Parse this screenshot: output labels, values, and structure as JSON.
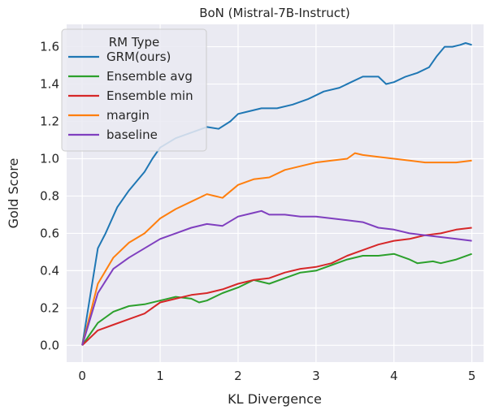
{
  "chart_data": {
    "type": "line",
    "title": "BoN (Mistral-7B-Instruct)",
    "xlabel": "KL Divergence",
    "ylabel": "Gold Score",
    "xlim": [
      -0.2,
      5.15
    ],
    "ylim": [
      -0.09,
      1.72
    ],
    "xticks": [
      0,
      1,
      2,
      3,
      4,
      5
    ],
    "yticks": [
      0.0,
      0.2,
      0.4,
      0.6,
      0.8,
      1.0,
      1.2,
      1.4,
      1.6
    ],
    "xtick_labels": [
      "0",
      "1",
      "2",
      "3",
      "4",
      "5"
    ],
    "ytick_labels": [
      "0.0",
      "0.2",
      "0.4",
      "0.6",
      "0.8",
      "1.0",
      "1.2",
      "1.4",
      "1.6"
    ],
    "grid": true,
    "legend_title": "RM Type",
    "legend_position": "top-left",
    "series": [
      {
        "name": "GRM(ours)",
        "color": "#1f77b4",
        "x": [
          0,
          0.1,
          0.2,
          0.3,
          0.45,
          0.6,
          0.8,
          0.9,
          1.0,
          1.2,
          1.4,
          1.6,
          1.75,
          1.9,
          2.0,
          2.1,
          2.3,
          2.5,
          2.7,
          2.9,
          3.1,
          3.3,
          3.45,
          3.6,
          3.8,
          3.9,
          4.0,
          4.15,
          4.3,
          4.45,
          4.55,
          4.65,
          4.75,
          4.85,
          4.92,
          5.0
        ],
        "y": [
          0,
          0.26,
          0.52,
          0.6,
          0.74,
          0.83,
          0.93,
          1.0,
          1.06,
          1.11,
          1.14,
          1.17,
          1.16,
          1.2,
          1.24,
          1.25,
          1.27,
          1.27,
          1.29,
          1.32,
          1.36,
          1.38,
          1.41,
          1.44,
          1.44,
          1.4,
          1.41,
          1.44,
          1.46,
          1.49,
          1.55,
          1.6,
          1.6,
          1.61,
          1.62,
          1.61
        ]
      },
      {
        "name": "Ensemble avg",
        "color": "#2ca02c",
        "x": [
          0,
          0.2,
          0.4,
          0.6,
          0.8,
          1.0,
          1.2,
          1.4,
          1.5,
          1.6,
          1.8,
          2.0,
          2.2,
          2.4,
          2.6,
          2.8,
          3.0,
          3.2,
          3.4,
          3.6,
          3.8,
          4.0,
          4.2,
          4.3,
          4.5,
          4.6,
          4.8,
          5.0
        ],
        "y": [
          0,
          0.12,
          0.18,
          0.21,
          0.22,
          0.24,
          0.26,
          0.25,
          0.23,
          0.24,
          0.28,
          0.31,
          0.35,
          0.33,
          0.36,
          0.39,
          0.4,
          0.43,
          0.46,
          0.48,
          0.48,
          0.49,
          0.46,
          0.44,
          0.45,
          0.44,
          0.46,
          0.49
        ]
      },
      {
        "name": "Ensemble min",
        "color": "#d62728",
        "x": [
          0,
          0.2,
          0.4,
          0.6,
          0.8,
          1.0,
          1.2,
          1.4,
          1.6,
          1.8,
          2.0,
          2.2,
          2.4,
          2.6,
          2.8,
          3.0,
          3.2,
          3.4,
          3.6,
          3.8,
          4.0,
          4.2,
          4.4,
          4.6,
          4.8,
          5.0
        ],
        "y": [
          0,
          0.08,
          0.11,
          0.14,
          0.17,
          0.23,
          0.25,
          0.27,
          0.28,
          0.3,
          0.33,
          0.35,
          0.36,
          0.39,
          0.41,
          0.42,
          0.44,
          0.48,
          0.51,
          0.54,
          0.56,
          0.57,
          0.59,
          0.6,
          0.62,
          0.63
        ]
      },
      {
        "name": "margin",
        "color": "#ff7f0e",
        "x": [
          0,
          0.2,
          0.4,
          0.6,
          0.8,
          1.0,
          1.2,
          1.4,
          1.6,
          1.8,
          2.0,
          2.2,
          2.4,
          2.6,
          2.8,
          3.0,
          3.2,
          3.4,
          3.5,
          3.6,
          3.8,
          4.0,
          4.2,
          4.4,
          4.6,
          4.8,
          5.0
        ],
        "y": [
          0,
          0.33,
          0.47,
          0.55,
          0.6,
          0.68,
          0.73,
          0.77,
          0.81,
          0.79,
          0.86,
          0.89,
          0.9,
          0.94,
          0.96,
          0.98,
          0.99,
          1.0,
          1.03,
          1.02,
          1.01,
          1.0,
          0.99,
          0.98,
          0.98,
          0.98,
          0.99
        ]
      },
      {
        "name": "baseline",
        "color": "#7f3fbf",
        "x": [
          0,
          0.2,
          0.4,
          0.6,
          0.8,
          1.0,
          1.2,
          1.4,
          1.6,
          1.8,
          2.0,
          2.2,
          2.3,
          2.4,
          2.6,
          2.8,
          3.0,
          3.2,
          3.4,
          3.6,
          3.8,
          4.0,
          4.2,
          4.4,
          4.6,
          4.8,
          5.0
        ],
        "y": [
          0,
          0.28,
          0.41,
          0.47,
          0.52,
          0.57,
          0.6,
          0.63,
          0.65,
          0.64,
          0.69,
          0.71,
          0.72,
          0.7,
          0.7,
          0.69,
          0.69,
          0.68,
          0.67,
          0.66,
          0.63,
          0.62,
          0.6,
          0.59,
          0.58,
          0.57,
          0.56
        ]
      }
    ]
  }
}
